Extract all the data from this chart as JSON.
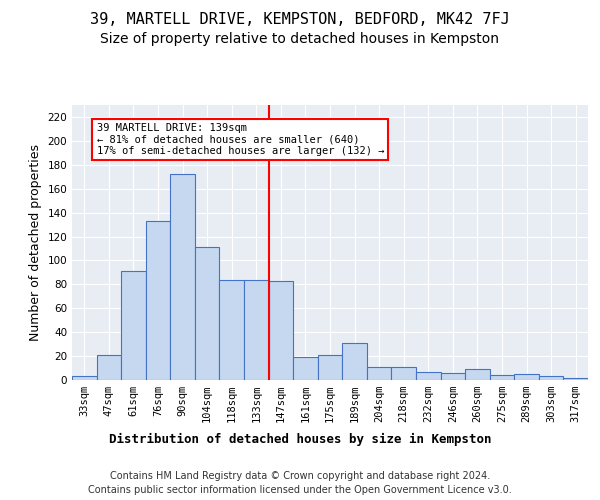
{
  "title": "39, MARTELL DRIVE, KEMPSTON, BEDFORD, MK42 7FJ",
  "subtitle": "Size of property relative to detached houses in Kempston",
  "xlabel": "Distribution of detached houses by size in Kempston",
  "ylabel": "Number of detached properties",
  "categories": [
    "33sqm",
    "47sqm",
    "61sqm",
    "76sqm",
    "90sqm",
    "104sqm",
    "118sqm",
    "133sqm",
    "147sqm",
    "161sqm",
    "175sqm",
    "189sqm",
    "204sqm",
    "218sqm",
    "232sqm",
    "246sqm",
    "260sqm",
    "275sqm",
    "289sqm",
    "303sqm",
    "317sqm"
  ],
  "values": [
    3,
    21,
    91,
    133,
    172,
    111,
    84,
    84,
    83,
    19,
    21,
    31,
    11,
    11,
    7,
    6,
    9,
    4,
    5,
    3,
    2
  ],
  "bar_color": "#c5d8f0",
  "bar_edge_color": "#4472c4",
  "background_color": "#e8edf4",
  "red_line_index": 8,
  "annotation_text": "39 MARTELL DRIVE: 139sqm\n← 81% of detached houses are smaller (640)\n17% of semi-detached houses are larger (132) →",
  "annotation_box_color": "white",
  "annotation_box_edge_color": "red",
  "footer_line1": "Contains HM Land Registry data © Crown copyright and database right 2024.",
  "footer_line2": "Contains public sector information licensed under the Open Government Licence v3.0.",
  "ylim": [
    0,
    230
  ],
  "yticks": [
    0,
    20,
    40,
    60,
    80,
    100,
    120,
    140,
    160,
    180,
    200,
    220
  ],
  "title_fontsize": 11,
  "subtitle_fontsize": 10,
  "ylabel_fontsize": 9,
  "xlabel_fontsize": 9,
  "tick_fontsize": 7.5,
  "annotation_fontsize": 7.5,
  "footer_fontsize": 7
}
